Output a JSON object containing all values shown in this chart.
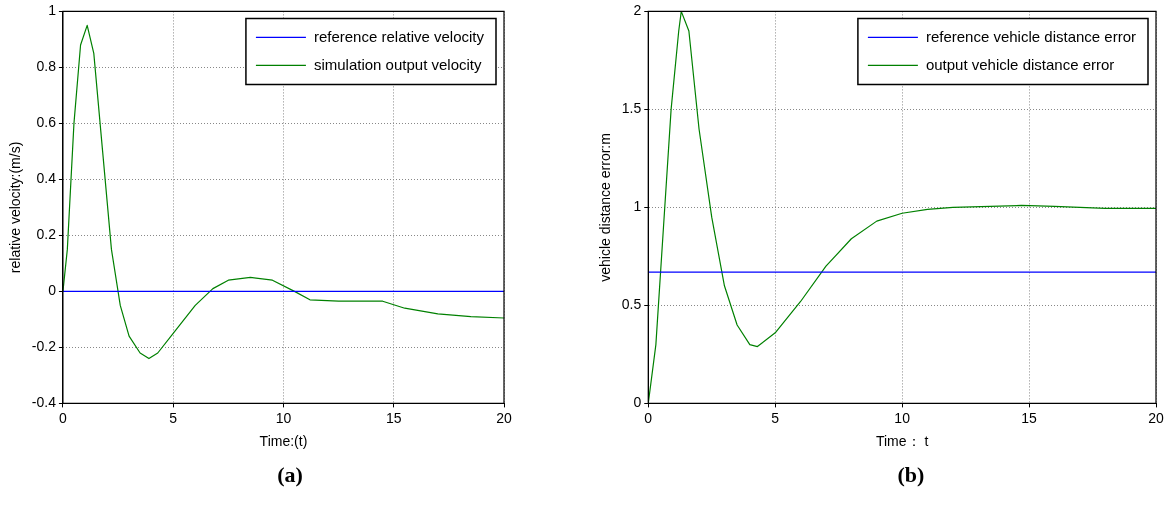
{
  "chart_data": [
    {
      "type": "line",
      "xlabel": "Time:(t)",
      "ylabel": "relative velocity:(m/s)",
      "xlim": [
        0,
        20
      ],
      "ylim": [
        -0.4,
        1
      ],
      "xticks": [
        0,
        5,
        10,
        15,
        20
      ],
      "yticks": [
        -0.4,
        -0.2,
        0,
        0.2,
        0.4,
        0.6,
        0.8,
        1
      ],
      "grid": true,
      "legend": "top right",
      "line_style": "solid",
      "annotations": [
        "(a)"
      ],
      "series": [
        {
          "name": "reference relative velocity",
          "color": "#0000ff",
          "x": [
            0,
            20
          ],
          "values": [
            0,
            0
          ]
        },
        {
          "name": "simulation output velocity",
          "color": "#008000",
          "x": [
            0,
            0.2,
            0.5,
            0.8,
            1.1,
            1.4,
            1.8,
            2.2,
            2.6,
            3,
            3.5,
            3.9,
            4.3,
            5,
            6,
            6.8,
            7.5,
            8.5,
            9.5,
            10.5,
            11.2,
            12.5,
            14.5,
            15.5,
            17,
            18.5,
            20
          ],
          "values": [
            0,
            0.15,
            0.6,
            0.88,
            0.95,
            0.85,
            0.5,
            0.15,
            -0.05,
            -0.16,
            -0.22,
            -0.24,
            -0.22,
            -0.15,
            -0.05,
            0.01,
            0.04,
            0.05,
            0.04,
            0,
            -0.03,
            -0.035,
            -0.035,
            -0.06,
            -0.08,
            -0.09,
            -0.095
          ]
        }
      ]
    },
    {
      "type": "line",
      "xlabel": "Time： t",
      "ylabel": "vehicle distance error:m",
      "xlim": [
        0,
        20
      ],
      "ylim": [
        0,
        2
      ],
      "xticks": [
        0,
        5,
        10,
        15,
        20
      ],
      "yticks": [
        0,
        0.5,
        1,
        1.5,
        2
      ],
      "grid": true,
      "legend": "top right",
      "line_style": "solid",
      "annotations": [
        "(b)"
      ],
      "series": [
        {
          "name": "reference vehicle distance error",
          "color": "#0000ff",
          "x": [
            0,
            20
          ],
          "values": [
            0.67,
            0.67
          ]
        },
        {
          "name": "output vehicle distance error",
          "color": "#008000",
          "x": [
            0,
            0.3,
            0.6,
            0.9,
            1.2,
            1.3,
            1.6,
            2,
            2.5,
            3,
            3.5,
            4,
            4.3,
            5,
            6,
            7,
            8,
            9,
            10,
            11,
            12,
            14.7,
            16,
            18,
            20
          ],
          "values": [
            0,
            0.3,
            0.9,
            1.5,
            1.9,
            2,
            1.9,
            1.4,
            0.95,
            0.6,
            0.4,
            0.3,
            0.29,
            0.36,
            0.52,
            0.7,
            0.84,
            0.93,
            0.97,
            0.99,
            1,
            1.01,
            1.005,
            0.995,
            0.995
          ]
        }
      ]
    }
  ]
}
